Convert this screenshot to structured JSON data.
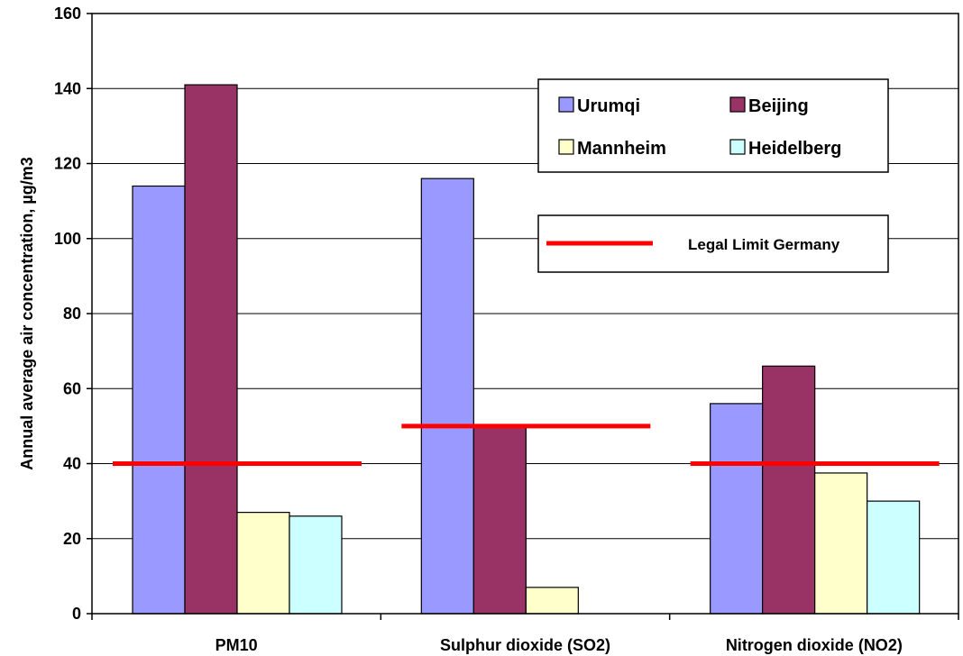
{
  "chart_data": {
    "type": "bar",
    "title": "",
    "xlabel": "",
    "ylabel": "Annual average air concentration, µg/m3",
    "ylim": [
      0,
      160
    ],
    "yticks": [
      0,
      20,
      40,
      60,
      80,
      100,
      120,
      140,
      160
    ],
    "grid": true,
    "categories": [
      "PM10",
      "Sulphur dioxide (SO2)",
      "Nitrogen dioxide (NO2)"
    ],
    "series": [
      {
        "name": "Urumqi",
        "color": "#9999ff",
        "values": [
          114,
          116,
          56
        ]
      },
      {
        "name": "Beijing",
        "color": "#993366",
        "values": [
          141,
          50,
          66
        ]
      },
      {
        "name": "Mannheim",
        "color": "#ffffcc",
        "values": [
          27,
          7,
          37.5
        ]
      },
      {
        "name": "Heidelberg",
        "color": "#ccffff",
        "values": [
          26,
          null,
          30
        ]
      }
    ],
    "limit_line": {
      "name": "Legal Limit Germany",
      "color": "#ff0000",
      "values": [
        40,
        50,
        40
      ]
    },
    "legend_placement": "top-right"
  }
}
